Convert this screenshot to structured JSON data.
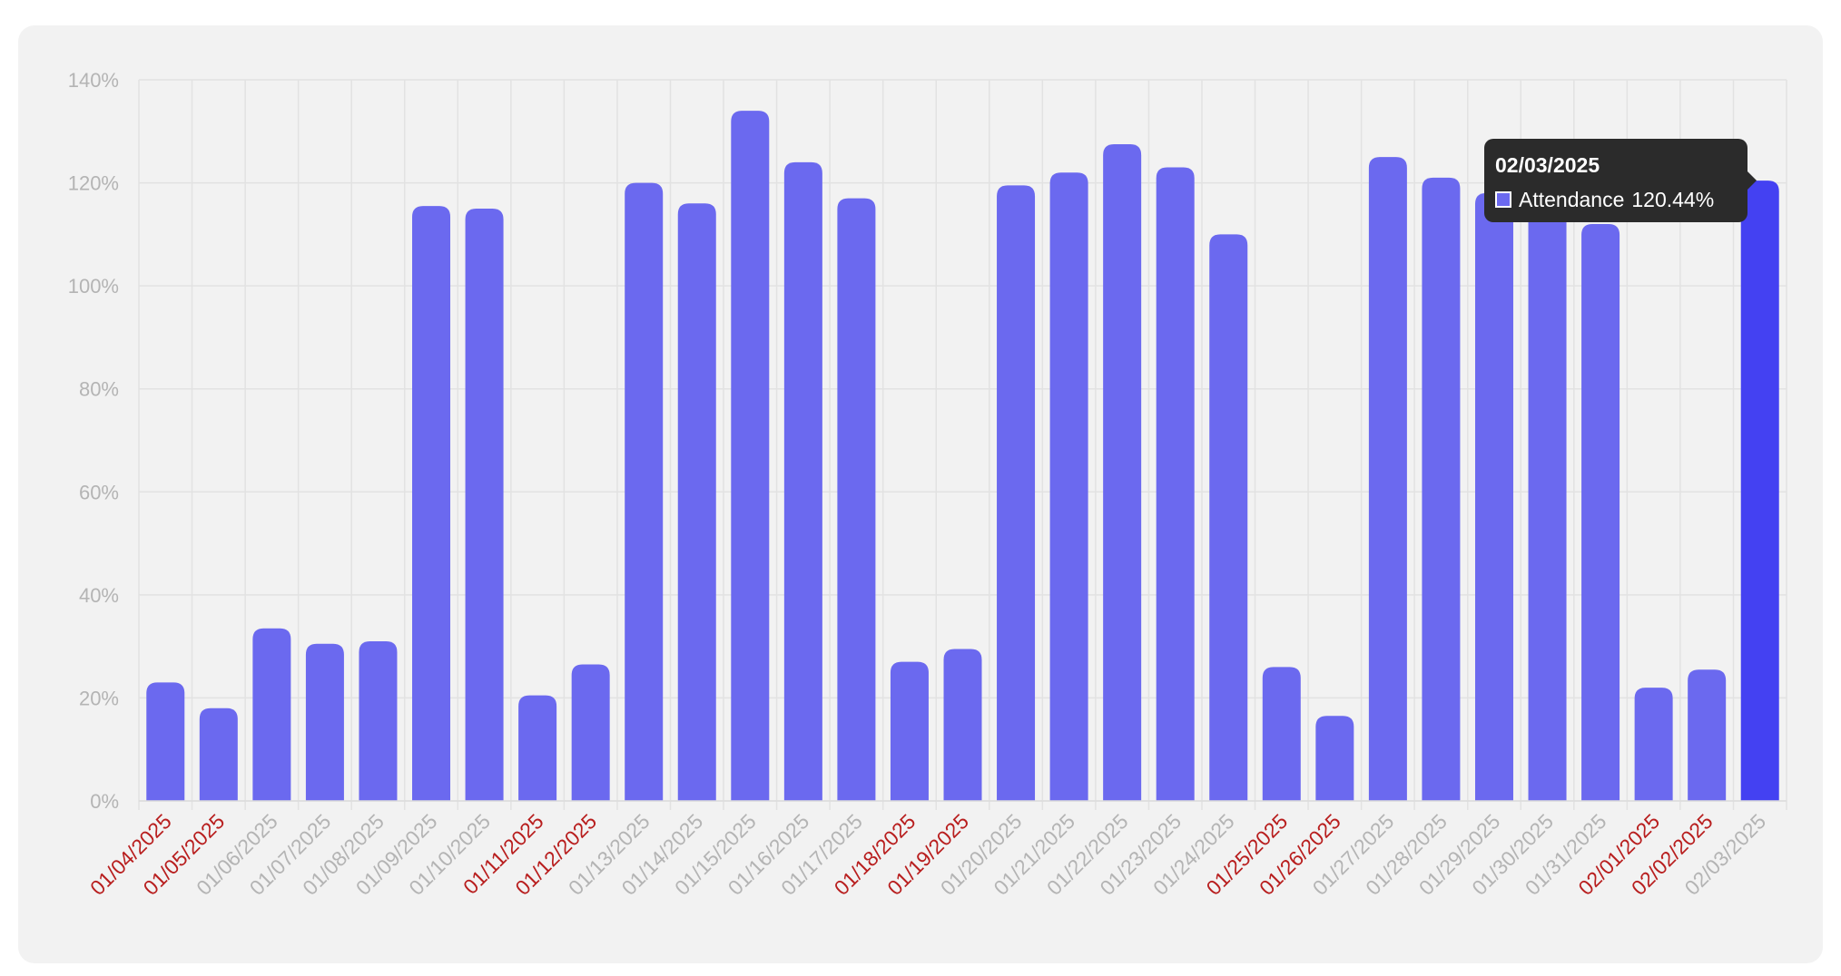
{
  "chart_data": {
    "type": "bar",
    "categories": [
      "01/04/2025",
      "01/05/2025",
      "01/06/2025",
      "01/07/2025",
      "01/08/2025",
      "01/09/2025",
      "01/10/2025",
      "01/11/2025",
      "01/12/2025",
      "01/13/2025",
      "01/14/2025",
      "01/15/2025",
      "01/16/2025",
      "01/17/2025",
      "01/18/2025",
      "01/19/2025",
      "01/20/2025",
      "01/21/2025",
      "01/22/2025",
      "01/23/2025",
      "01/24/2025",
      "01/25/2025",
      "01/26/2025",
      "01/27/2025",
      "01/28/2025",
      "01/29/2025",
      "01/30/2025",
      "01/31/2025",
      "02/01/2025",
      "02/02/2025",
      "02/03/2025"
    ],
    "weekend": [
      true,
      true,
      false,
      false,
      false,
      false,
      false,
      true,
      true,
      false,
      false,
      false,
      false,
      false,
      true,
      true,
      false,
      false,
      false,
      false,
      false,
      true,
      true,
      false,
      false,
      false,
      false,
      false,
      true,
      true,
      false
    ],
    "series": [
      {
        "name": "Attendance",
        "values": [
          23,
          18,
          33.5,
          30.5,
          31,
          115.5,
          115,
          20.5,
          26.5,
          120,
          116,
          134,
          124,
          117,
          27,
          29.5,
          119.5,
          122,
          127.5,
          123,
          110,
          26,
          16.5,
          125,
          121,
          118,
          128,
          112,
          22,
          25.5,
          120.44
        ]
      }
    ],
    "y_ticks": [
      "0%",
      "20%",
      "40%",
      "60%",
      "80%",
      "100%",
      "120%",
      "140%"
    ],
    "ylim": [
      0,
      140
    ],
    "grid": true,
    "highlight_index": 30,
    "colors": {
      "bar": "#6b69ef",
      "bar_highlight": "#4441f2",
      "tick_normal": "#b4b4b4",
      "tick_weekend": "#b81e1e",
      "grid": "#e2e2e2"
    }
  },
  "tooltip": {
    "title": "02/03/2025",
    "label": "Attendance",
    "value": "120.44%"
  }
}
